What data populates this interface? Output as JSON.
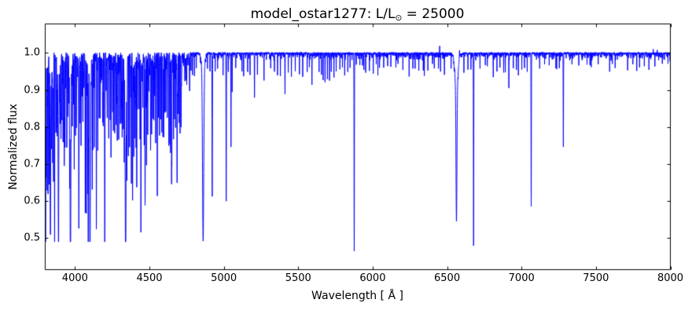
{
  "figure": {
    "title_prefix": "model_ostar1277: L/L",
    "title_sub": "⊙",
    "title_suffix": " = 25000",
    "xlabel": "Wavelength [ Å ]",
    "ylabel": "Normalized flux",
    "background": "#ffffff",
    "axis_color": "#000000"
  },
  "chart_data": {
    "type": "line",
    "title": "model_ostar1277: L/L⊙ = 25000",
    "xlabel": "Wavelength [ Å ]",
    "ylabel": "Normalized flux",
    "xlim": [
      3800,
      8000
    ],
    "ylim": [
      0.415,
      1.078
    ],
    "x_ticks": [
      4000,
      4500,
      5000,
      5500,
      6000,
      6500,
      7000,
      7500,
      8000
    ],
    "y_ticks": [
      0.5,
      0.6,
      0.7,
      0.8,
      0.9,
      1.0
    ],
    "grid": false,
    "legend": null,
    "line_color": "#0000ff",
    "continuum_flux": 1.0,
    "sample_step_A": 0.5,
    "absorption_lines_columns": [
      "wavelength_A",
      "min_flux",
      "sigma_A"
    ],
    "absorption_lines": [
      [
        3802,
        0.72,
        0.9
      ],
      [
        3806,
        0.68,
        0.9
      ],
      [
        3813,
        0.63,
        0.9
      ],
      [
        3819,
        0.62,
        1.1
      ],
      [
        3827,
        0.7,
        0.8
      ],
      [
        3835,
        0.57,
        2.2
      ],
      [
        3842,
        0.78,
        0.7
      ],
      [
        3850,
        0.74,
        0.8
      ],
      [
        3856,
        0.71,
        0.8
      ],
      [
        3863,
        0.77,
        0.7
      ],
      [
        3872,
        0.81,
        0.7
      ],
      [
        3880,
        0.84,
        0.6
      ],
      [
        3889,
        0.545,
        2.2
      ],
      [
        3900,
        0.82,
        0.7
      ],
      [
        3906,
        0.79,
        0.7
      ],
      [
        3913,
        0.84,
        0.6
      ],
      [
        3920,
        0.77,
        0.8
      ],
      [
        3926,
        0.77,
        0.9
      ],
      [
        3933,
        0.76,
        0.8
      ],
      [
        3945,
        0.84,
        0.7
      ],
      [
        3952,
        0.86,
        0.6
      ],
      [
        3964,
        0.73,
        1.0
      ],
      [
        3970,
        0.53,
        2.4
      ],
      [
        3983,
        0.84,
        0.7
      ],
      [
        3995,
        0.73,
        0.8
      ],
      [
        4009,
        0.81,
        0.9
      ],
      [
        4026,
        0.585,
        1.3
      ],
      [
        4035,
        0.81,
        0.7
      ],
      [
        4041,
        0.79,
        0.7
      ],
      [
        4053,
        0.84,
        0.6
      ],
      [
        4069,
        0.69,
        0.8
      ],
      [
        4076,
        0.6,
        0.9
      ],
      [
        4085,
        0.65,
        0.8
      ],
      [
        4089,
        0.55,
        1.0
      ],
      [
        4101,
        0.5,
        2.6
      ],
      [
        4116,
        0.71,
        0.8
      ],
      [
        4121,
        0.75,
        0.9
      ],
      [
        4132,
        0.77,
        0.7
      ],
      [
        4144,
        0.69,
        1.0
      ],
      [
        4153,
        0.75,
        0.8
      ],
      [
        4163,
        0.83,
        0.6
      ],
      [
        4169,
        0.83,
        0.6
      ],
      [
        4185,
        0.87,
        0.6
      ],
      [
        4190,
        0.86,
        0.6
      ],
      [
        4200,
        0.56,
        1.2
      ],
      [
        4217,
        0.87,
        0.6
      ],
      [
        4227,
        0.85,
        0.7
      ],
      [
        4237,
        0.84,
        0.7
      ],
      [
        4242,
        0.83,
        0.7
      ],
      [
        4253,
        0.85,
        0.6
      ],
      [
        4267,
        0.79,
        0.8
      ],
      [
        4276,
        0.84,
        0.7
      ],
      [
        4284,
        0.85,
        0.6
      ],
      [
        4294,
        0.83,
        0.7
      ],
      [
        4305,
        0.84,
        0.7
      ],
      [
        4310,
        0.82,
        0.7
      ],
      [
        4317,
        0.79,
        0.8
      ],
      [
        4325,
        0.81,
        0.7
      ],
      [
        4331,
        0.77,
        0.8
      ],
      [
        4340,
        0.5,
        2.8
      ],
      [
        4349,
        0.71,
        0.9
      ],
      [
        4359,
        0.84,
        0.6
      ],
      [
        4367,
        0.77,
        0.8
      ],
      [
        4379,
        0.71,
        0.9
      ],
      [
        4387,
        0.645,
        1.2
      ],
      [
        4395,
        0.79,
        0.8
      ],
      [
        4400,
        0.77,
        0.8
      ],
      [
        4410,
        0.81,
        0.7
      ],
      [
        4415,
        0.73,
        0.9
      ],
      [
        4430,
        0.85,
        0.7
      ],
      [
        4437,
        0.8,
        0.9
      ],
      [
        4443,
        0.52,
        1.2
      ],
      [
        4456,
        0.87,
        0.6
      ],
      [
        4465,
        0.84,
        0.6
      ],
      [
        4471,
        0.6,
        1.4
      ],
      [
        4481,
        0.78,
        0.8
      ],
      [
        4489,
        0.86,
        0.6
      ],
      [
        4508,
        0.83,
        0.7
      ],
      [
        4515,
        0.81,
        0.7
      ],
      [
        4522,
        0.84,
        0.6
      ],
      [
        4530,
        0.82,
        0.7
      ],
      [
        4542,
        0.78,
        0.9
      ],
      [
        4553,
        0.63,
        1.0
      ],
      [
        4561,
        0.83,
        0.7
      ],
      [
        4568,
        0.79,
        0.8
      ],
      [
        4575,
        0.83,
        0.7
      ],
      [
        4583,
        0.81,
        0.7
      ],
      [
        4591,
        0.8,
        0.7
      ],
      [
        4596,
        0.81,
        0.7
      ],
      [
        4604,
        0.84,
        0.6
      ],
      [
        4610,
        0.85,
        0.6
      ],
      [
        4620,
        0.83,
        0.7
      ],
      [
        4631,
        0.79,
        0.8
      ],
      [
        4638,
        0.77,
        0.8
      ],
      [
        4642,
        0.75,
        0.8
      ],
      [
        4649,
        0.71,
        0.9
      ],
      [
        4651,
        0.73,
        0.8
      ],
      [
        4662,
        0.79,
        0.7
      ],
      [
        4668,
        0.82,
        0.7
      ],
      [
        4676,
        0.81,
        0.7
      ],
      [
        4686,
        0.68,
        1.2
      ],
      [
        4695,
        0.87,
        0.6
      ],
      [
        4700,
        0.85,
        0.6
      ],
      [
        4706,
        0.83,
        0.7
      ],
      [
        4713,
        0.81,
        1.0
      ],
      [
        4751,
        0.93,
        0.6
      ],
      [
        4770,
        0.94,
        0.6
      ],
      [
        4790,
        0.95,
        0.5
      ],
      [
        4803,
        0.94,
        0.5
      ],
      [
        4815,
        0.96,
        0.5
      ],
      [
        4861,
        0.542,
        4.0
      ],
      [
        4890,
        0.96,
        0.5
      ],
      [
        4907,
        0.95,
        0.5
      ],
      [
        4922,
        0.617,
        1.2
      ],
      [
        4942,
        0.95,
        0.5
      ],
      [
        4958,
        0.96,
        0.5
      ],
      [
        4995,
        0.94,
        0.6
      ],
      [
        5016,
        0.6,
        1.2
      ],
      [
        5030,
        0.95,
        0.5
      ],
      [
        5048,
        0.745,
        1.0
      ],
      [
        5056,
        0.9,
        0.7
      ],
      [
        5080,
        0.96,
        0.5
      ],
      [
        5122,
        0.95,
        0.6
      ],
      [
        5133,
        0.94,
        0.6
      ],
      [
        5160,
        0.95,
        0.5
      ],
      [
        5176,
        0.94,
        0.6
      ],
      [
        5206,
        0.88,
        0.8
      ],
      [
        5226,
        0.95,
        0.5
      ],
      [
        5270,
        0.93,
        0.6
      ],
      [
        5315,
        0.96,
        0.5
      ],
      [
        5340,
        0.95,
        0.5
      ],
      [
        5361,
        0.94,
        0.6
      ],
      [
        5380,
        0.95,
        0.5
      ],
      [
        5411,
        0.89,
        0.9
      ],
      [
        5433,
        0.95,
        0.5
      ],
      [
        5454,
        0.94,
        0.5
      ],
      [
        5480,
        0.96,
        0.5
      ],
      [
        5508,
        0.95,
        0.5
      ],
      [
        5530,
        0.94,
        0.6
      ],
      [
        5560,
        0.95,
        0.5
      ],
      [
        5575,
        0.96,
        0.5
      ],
      [
        5592,
        0.915,
        0.7
      ],
      [
        5640,
        0.95,
        0.5
      ],
      [
        5656,
        0.94,
        0.5
      ],
      [
        5667,
        0.93,
        0.6
      ],
      [
        5680,
        0.92,
        0.7
      ],
      [
        5696,
        0.93,
        0.6
      ],
      [
        5710,
        0.93,
        0.6
      ],
      [
        5722,
        0.95,
        0.5
      ],
      [
        5740,
        0.94,
        0.6
      ],
      [
        5755,
        0.95,
        0.5
      ],
      [
        5780,
        0.96,
        0.5
      ],
      [
        5797,
        0.96,
        0.5
      ],
      [
        5812,
        0.94,
        0.6
      ],
      [
        5833,
        0.95,
        0.5
      ],
      [
        5848,
        0.96,
        0.5
      ],
      [
        5876,
        0.468,
        1.2
      ],
      [
        5890,
        0.97,
        0.4
      ],
      [
        5914,
        0.97,
        0.4
      ],
      [
        5932,
        0.965,
        0.5
      ],
      [
        5941,
        0.955,
        0.6
      ],
      [
        5953,
        0.95,
        0.5
      ],
      [
        5978,
        0.95,
        0.5
      ],
      [
        6004,
        0.965,
        0.4
      ],
      [
        6024,
        0.97,
        0.4
      ],
      [
        6035,
        0.94,
        0.5
      ],
      [
        6046,
        0.96,
        0.4
      ],
      [
        6074,
        0.96,
        0.5
      ],
      [
        6101,
        0.965,
        0.4
      ],
      [
        6122,
        0.97,
        0.4
      ],
      [
        6156,
        0.96,
        0.5
      ],
      [
        6170,
        0.97,
        0.4
      ],
      [
        6203,
        0.955,
        0.5
      ],
      [
        6245,
        0.935,
        0.6
      ],
      [
        6270,
        0.96,
        0.4
      ],
      [
        6285,
        0.96,
        0.4
      ],
      [
        6310,
        0.955,
        0.5
      ],
      [
        6340,
        0.96,
        0.5
      ],
      [
        6347,
        0.95,
        0.5
      ],
      [
        6371,
        0.955,
        0.5
      ],
      [
        6402,
        0.97,
        0.4
      ],
      [
        6414,
        0.965,
        0.4
      ],
      [
        6442,
        0.96,
        0.4
      ],
      [
        6456,
        0.95,
        0.5
      ],
      [
        6482,
        0.945,
        0.5
      ],
      [
        6527,
        0.96,
        0.4
      ],
      [
        6563,
        0.655,
        3.0
      ],
      [
        6613,
        0.955,
        0.5
      ],
      [
        6640,
        0.96,
        0.5
      ],
      [
        6660,
        0.96,
        0.4
      ],
      [
        6678,
        0.478,
        1.1
      ],
      [
        6721,
        0.96,
        0.5
      ],
      [
        6757,
        0.97,
        0.4
      ],
      [
        6770,
        0.965,
        0.4
      ],
      [
        6810,
        0.95,
        0.5
      ],
      [
        6835,
        0.96,
        0.4
      ],
      [
        6855,
        0.96,
        0.4
      ],
      [
        6880,
        0.95,
        0.5
      ],
      [
        6891,
        0.95,
        0.5
      ],
      [
        6915,
        0.905,
        0.7
      ],
      [
        6945,
        0.96,
        0.4
      ],
      [
        6966,
        0.955,
        0.5
      ],
      [
        6979,
        0.95,
        0.5
      ],
      [
        7002,
        0.96,
        0.5
      ],
      [
        7020,
        0.96,
        0.4
      ],
      [
        7038,
        0.95,
        0.5
      ],
      [
        7065,
        0.587,
        1.1
      ],
      [
        7122,
        0.965,
        0.5
      ],
      [
        7155,
        0.97,
        0.4
      ],
      [
        7186,
        0.97,
        0.4
      ],
      [
        7231,
        0.96,
        0.5
      ],
      [
        7236,
        0.955,
        0.5
      ],
      [
        7254,
        0.96,
        0.4
      ],
      [
        7281,
        0.755,
        1.0
      ],
      [
        7339,
        0.97,
        0.4
      ],
      [
        7385,
        0.97,
        0.4
      ],
      [
        7440,
        0.97,
        0.4
      ],
      [
        7460,
        0.97,
        0.4
      ],
      [
        7468,
        0.965,
        0.5
      ],
      [
        7515,
        0.97,
        0.4
      ],
      [
        7592,
        0.955,
        0.5
      ],
      [
        7610,
        0.97,
        0.4
      ],
      [
        7629,
        0.96,
        0.5
      ],
      [
        7713,
        0.955,
        0.5
      ],
      [
        7748,
        0.97,
        0.4
      ],
      [
        7774,
        0.955,
        0.6
      ],
      [
        7793,
        0.96,
        0.5
      ],
      [
        7825,
        0.97,
        0.4
      ],
      [
        7856,
        0.96,
        0.5
      ],
      [
        7896,
        0.965,
        0.5
      ],
      [
        7946,
        0.97,
        0.4
      ],
      [
        7984,
        0.97,
        0.4
      ]
    ],
    "balmer_wings_columns": [
      "wavelength_A",
      "min_flux",
      "sigma_A"
    ],
    "balmer_wings": [
      [
        3835,
        0.965,
        6
      ],
      [
        3889,
        0.96,
        6
      ],
      [
        3970,
        0.955,
        7
      ],
      [
        4101,
        0.95,
        7
      ],
      [
        4340,
        0.95,
        8
      ],
      [
        4861,
        0.95,
        9
      ],
      [
        6563,
        0.9,
        10
      ]
    ],
    "emission_spikes_columns": [
      "wavelength_A",
      "amplitude_flux",
      "sigma_A"
    ],
    "emission_spikes": [
      [
        5982,
        0.008,
        0.5
      ],
      [
        6450,
        0.018,
        0.7
      ],
      [
        6583,
        0.022,
        0.8
      ],
      [
        7885,
        0.01,
        0.5
      ],
      [
        7912,
        0.012,
        0.5
      ]
    ],
    "weak_line_forest": {
      "blue_forest": {
        "range_A": [
          3795,
          4775
        ],
        "seed": 1277,
        "mean_spacing_A": 5.0,
        "max_extra_depth": 0.33,
        "sigma_range_A": [
          0.45,
          1.2
        ]
      },
      "micro_forest": {
        "range_A": [
          3800,
          8000
        ],
        "seed": 42,
        "mean_spacing_A": 3.5,
        "max_depth": 0.02,
        "blue_boost_below_A": 5000
      },
      "pixel_jitter_flux": 0.0016
    }
  }
}
